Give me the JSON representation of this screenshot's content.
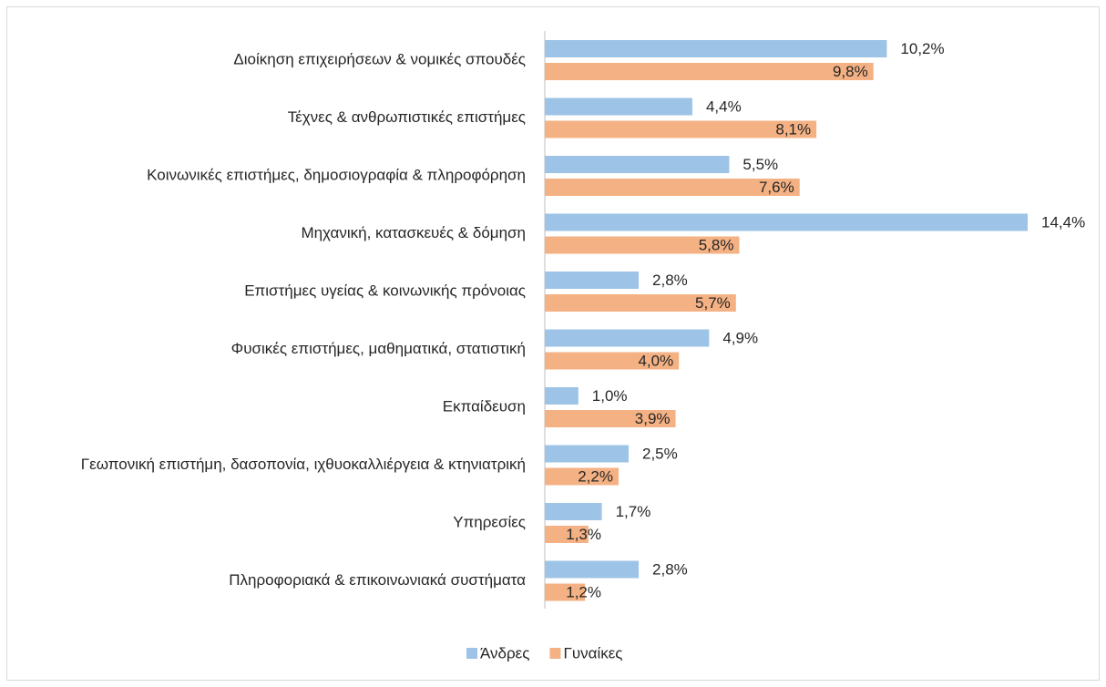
{
  "chart_data": {
    "type": "bar",
    "orientation": "horizontal",
    "categories": [
      "Διοίκηση επιχειρήσεων & νομικές σπουδές",
      "Τέχνες & ανθρωπιστικές επιστήμες",
      "Κοινωνικές επιστήμες, δημοσιογραφία & πληροφόρηση",
      "Μηχανική, κατασκευές & δόμηση",
      "Επιστήμες υγείας & κοινωνικής πρόνοιας",
      "Φυσικές επιστήμες, μαθηματικά, στατιστική",
      "Εκπαίδευση",
      "Γεωπονική επιστήμη, δασοπονία, ιχθυοκαλλιέργεια & κτηνιατρική",
      "Υπηρεσίες",
      "Πληροφοριακά & επικοινωνιακά συστήματα"
    ],
    "series": [
      {
        "name": "Άνδρες",
        "color": "#9dc3e6",
        "values": [
          10.2,
          4.4,
          5.5,
          14.4,
          2.8,
          4.9,
          1.0,
          2.5,
          1.7,
          2.8
        ],
        "value_labels": [
          "10,2%",
          "4,4%",
          "5,5%",
          "14,4%",
          "2,8%",
          "4,9%",
          "1,0%",
          "2,5%",
          "1,7%",
          "2,8%"
        ]
      },
      {
        "name": "Γυναίκες",
        "color": "#f4b183",
        "values": [
          9.8,
          8.1,
          7.6,
          5.8,
          5.7,
          4.0,
          3.9,
          2.2,
          1.3,
          1.2
        ],
        "value_labels": [
          "9,8%",
          "8,1%",
          "7,6%",
          "5,8%",
          "5,7%",
          "4,0%",
          "3,9%",
          "2,2%",
          "1,3%",
          "1,2%"
        ]
      }
    ],
    "legend": "bottom"
  }
}
